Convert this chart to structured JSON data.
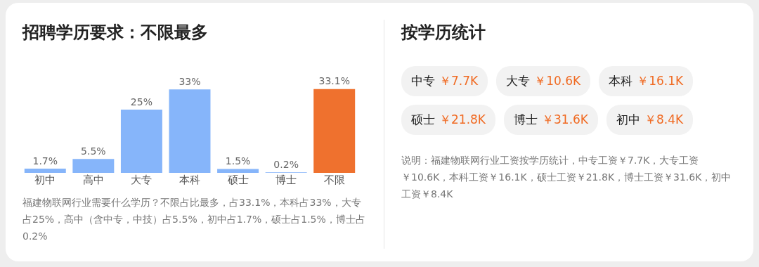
{
  "chart_data": [
    {
      "type": "bar",
      "title": "招聘学历要求：不限最多",
      "categories": [
        "初中",
        "高中",
        "大专",
        "本科",
        "硕士",
        "博士",
        "不限"
      ],
      "values": [
        1.7,
        5.5,
        25,
        33,
        1.5,
        0.2,
        33.1
      ],
      "colors": [
        "#86b5fa",
        "#86b5fa",
        "#86b5fa",
        "#86b5fa",
        "#86b5fa",
        "#86b5fa",
        "#ef712e"
      ],
      "value_labels": [
        "1.7%",
        "5.5%",
        "25%",
        "33%",
        "1.5%",
        "0.2%",
        "33.1%"
      ],
      "tick_labels": "x",
      "grid": false,
      "annotations": [
        "福建物联网行业需要什么学历？不限占比最多，占33.1%，本科占33%，大专占25%，高中（含中专，中技）占5.5%，初中占1.7%，硕士占1.5%，博士占0.2%"
      ]
    },
    {
      "type": "other",
      "title": "按学历统计",
      "categories": [
        "中专",
        "大专",
        "本科",
        "硕士",
        "博士",
        "初中"
      ],
      "value_labels": [
        "￥7.7K",
        "￥10.6K",
        "￥16.1K",
        "￥21.8K",
        "￥31.6K",
        "￥8.4K"
      ],
      "annotations": [
        "说明：福建物联网行业工资按学历统计，中专工资￥7.7K，大专工资￥10.6K，本科工资￥16.1K，硕士工资￥21.8K，博士工资￥31.6K，初中工资￥8.4K"
      ]
    }
  ]
}
